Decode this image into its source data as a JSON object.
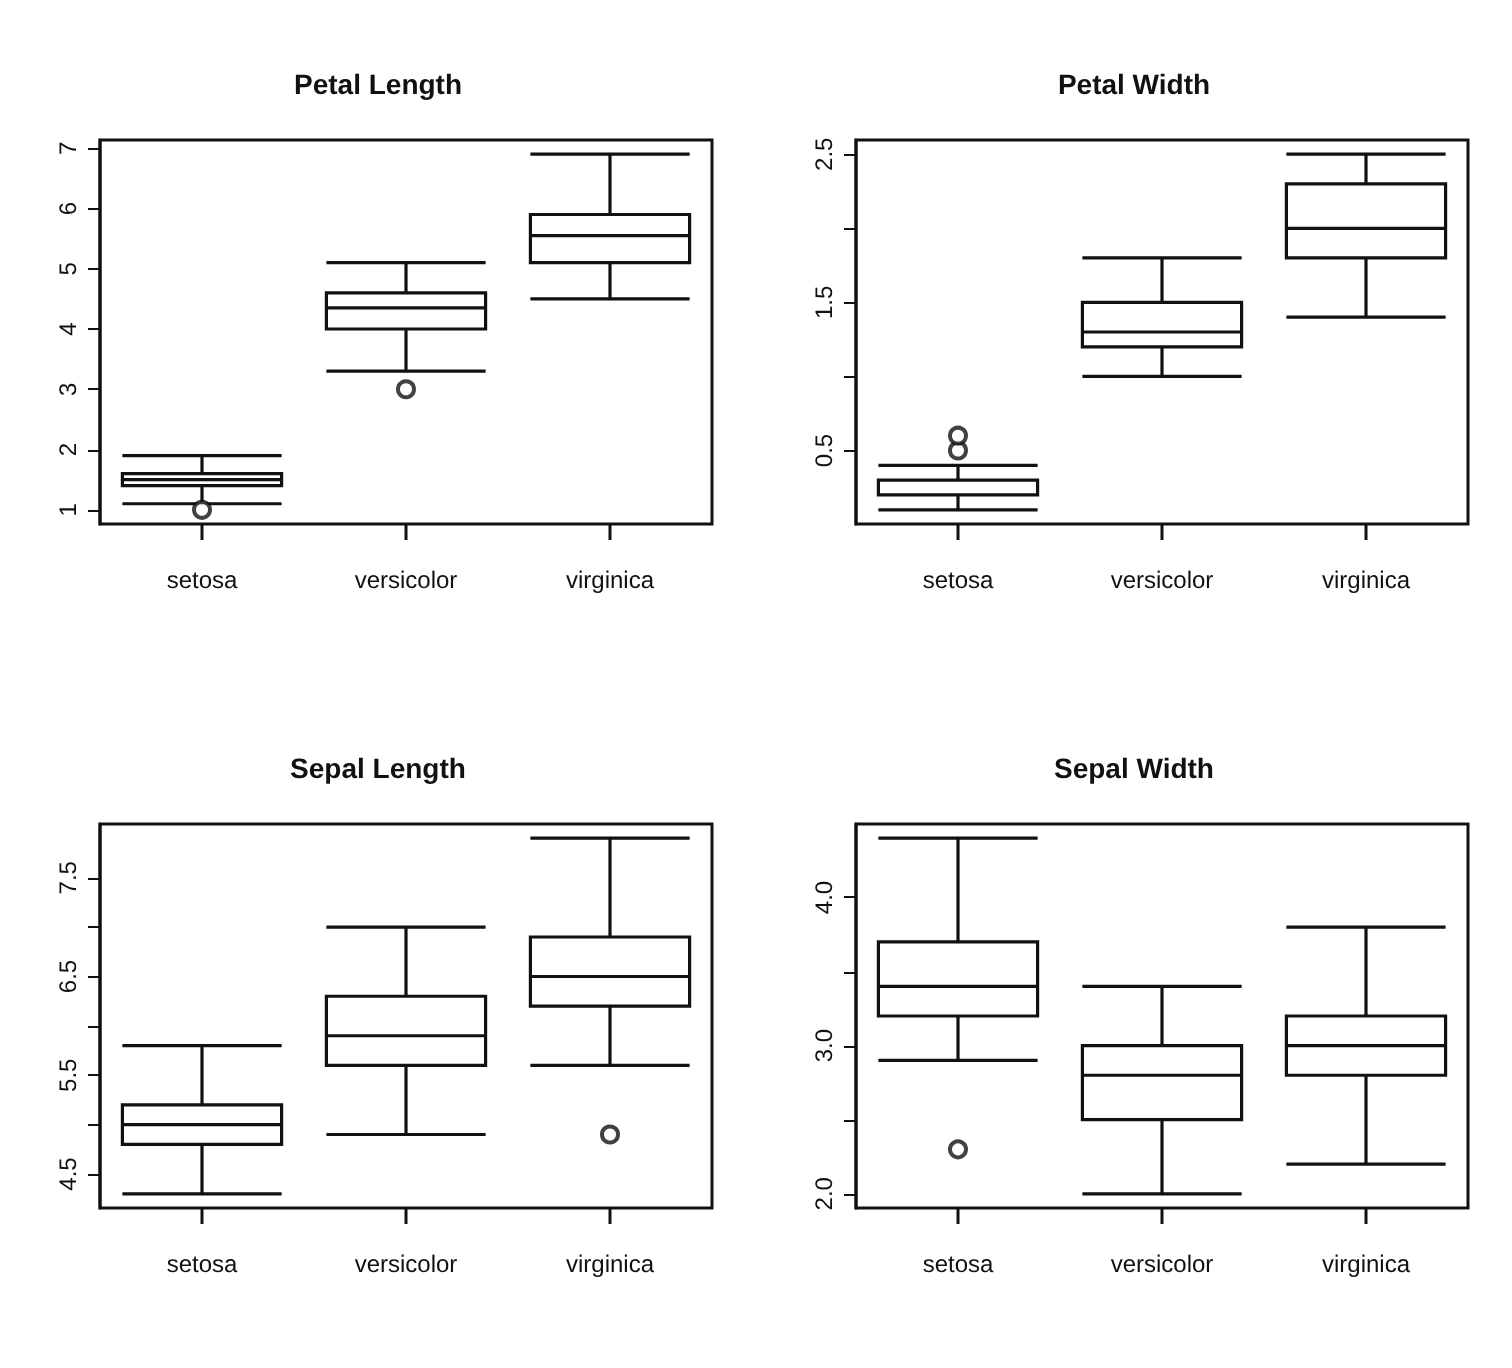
{
  "chart_data": [
    {
      "type": "box",
      "title": "Petal Length",
      "categories": [
        "setosa",
        "versicolor",
        "virginica"
      ],
      "ylim": [
        0.764,
        7.136
      ],
      "yticks": [
        1,
        2,
        3,
        4,
        5,
        6,
        7
      ],
      "boxes": [
        {
          "low": 1.1,
          "q1": 1.4,
          "median": 1.5,
          "q3": 1.6,
          "high": 1.9,
          "outliers": [
            1.0
          ]
        },
        {
          "low": 3.3,
          "q1": 4.0,
          "median": 4.35,
          "q3": 4.6,
          "high": 5.1,
          "outliers": [
            3.0
          ]
        },
        {
          "low": 4.5,
          "q1": 5.1,
          "median": 5.55,
          "q3": 5.9,
          "high": 6.9
        }
      ]
    },
    {
      "type": "box",
      "title": "Petal Width",
      "categories": [
        "setosa",
        "versicolor",
        "virginica"
      ],
      "ylim": [
        0.004,
        2.596
      ],
      "yticks": [
        0.5,
        {
          "value": 1.0,
          "label": null
        },
        1.5,
        {
          "value": 2.0,
          "label": null
        },
        2.5
      ],
      "boxes": [
        {
          "low": 0.1,
          "q1": 0.2,
          "median": 0.2,
          "q3": 0.3,
          "high": 0.4,
          "outliers": [
            0.5,
            0.6
          ]
        },
        {
          "low": 1.0,
          "q1": 1.2,
          "median": 1.3,
          "q3": 1.5,
          "high": 1.8
        },
        {
          "low": 1.4,
          "q1": 1.8,
          "median": 2.0,
          "q3": 2.3,
          "high": 2.5
        }
      ]
    },
    {
      "type": "box",
      "title": "Sepal Length",
      "categories": [
        "setosa",
        "versicolor",
        "virginica"
      ],
      "ylim": [
        4.156,
        8.044
      ],
      "yticks": [
        4.5,
        {
          "value": 5.0,
          "label": null
        },
        5.5,
        {
          "value": 6.0,
          "label": null
        },
        6.5,
        {
          "value": 7.0,
          "label": null
        },
        7.5
      ],
      "boxes": [
        {
          "low": 4.3,
          "q1": 4.8,
          "median": 5.0,
          "q3": 5.2,
          "high": 5.8
        },
        {
          "low": 4.9,
          "q1": 5.6,
          "median": 5.9,
          "q3": 6.3,
          "high": 7.0
        },
        {
          "low": 5.6,
          "q1": 6.2,
          "median": 6.5,
          "q3": 6.9,
          "high": 7.9,
          "outliers": [
            4.9
          ]
        }
      ]
    },
    {
      "type": "box",
      "title": "Sepal Width",
      "categories": [
        "setosa",
        "versicolor",
        "virginica"
      ],
      "ylim": [
        1.904,
        4.496
      ],
      "yticks": [
        {
          "value": 2.0,
          "label": "2.0"
        },
        {
          "value": 2.5,
          "label": null
        },
        {
          "value": 3.0,
          "label": "3.0"
        },
        {
          "value": 3.5,
          "label": null
        },
        {
          "value": 4.0,
          "label": "4.0"
        }
      ],
      "boxes": [
        {
          "low": 2.9,
          "q1": 3.2,
          "median": 3.4,
          "q3": 3.7,
          "high": 4.4,
          "outliers": [
            2.3
          ]
        },
        {
          "low": 2.0,
          "q1": 2.5,
          "median": 2.8,
          "q3": 3.0,
          "high": 3.4
        },
        {
          "low": 2.2,
          "q1": 2.8,
          "median": 3.0,
          "q3": 3.2,
          "high": 3.8
        }
      ]
    }
  ]
}
